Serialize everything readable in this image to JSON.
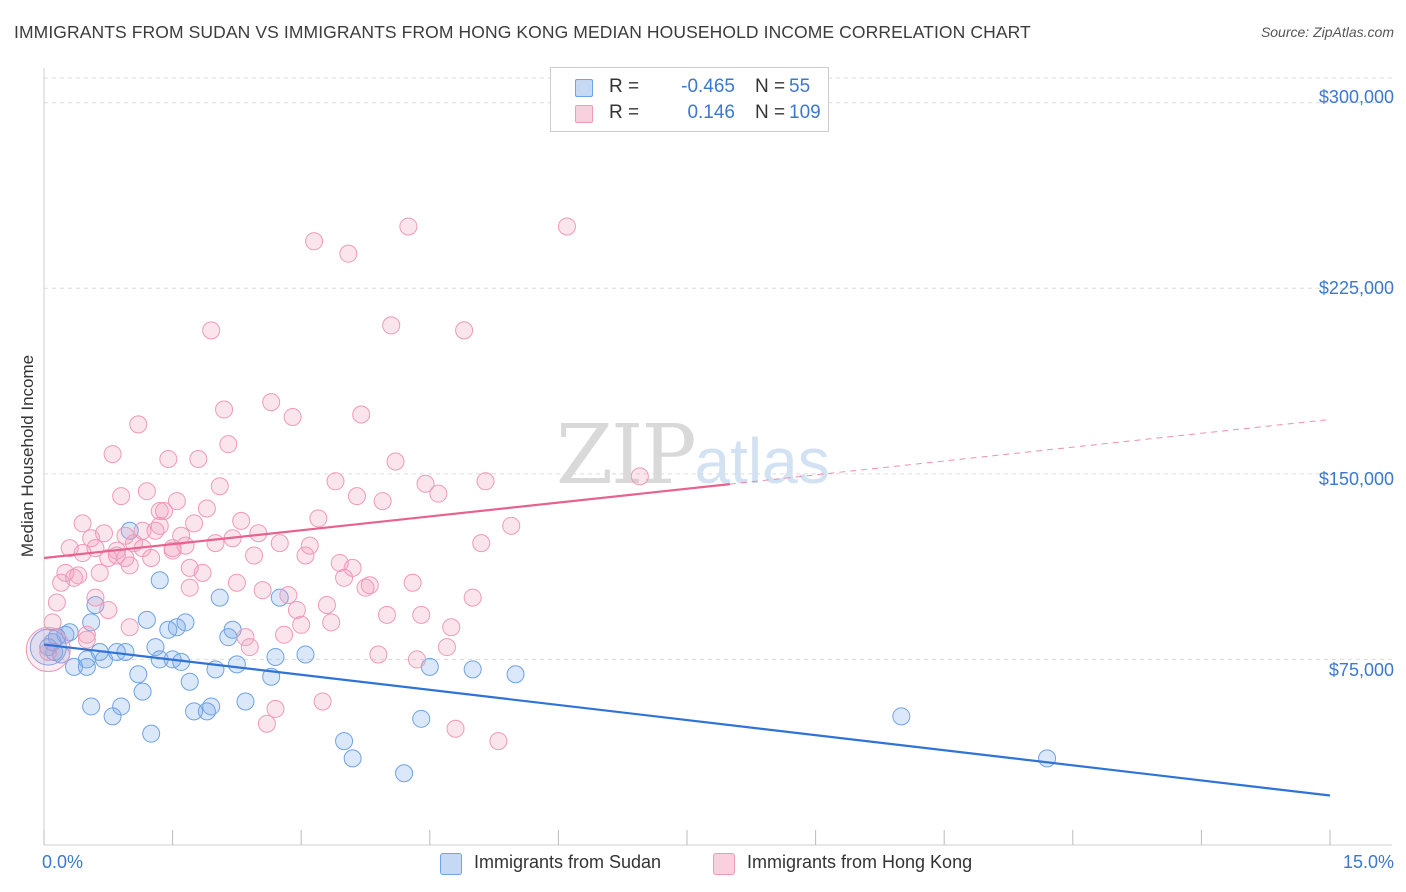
{
  "title": "IMMIGRANTS FROM SUDAN VS IMMIGRANTS FROM HONG KONG MEDIAN HOUSEHOLD INCOME CORRELATION CHART",
  "source": "Source: ZipAtlas.com",
  "watermark": {
    "zip": "ZIP",
    "atlas": "atlas"
  },
  "colors": {
    "blue": "#6fa2e6",
    "blue_line": "#2f73d6",
    "pink": "#f099b8",
    "pink_line": "#e8628e",
    "label_blue": "#3b78d0"
  },
  "legend": {
    "sudan": {
      "r_label": "R =",
      "r_value": "-0.465",
      "n_label": "N =",
      "n_value": "55"
    },
    "hongkong": {
      "r_label": "R =",
      "r_value": "0.146",
      "n_label": "N =",
      "n_value": "109"
    }
  },
  "bottom_legend": {
    "sudan": "Immigrants from Sudan",
    "hongkong": "Immigrants from Hong Kong"
  },
  "chart_data": {
    "type": "scatter",
    "title": "IMMIGRANTS FROM SUDAN VS IMMIGRANTS FROM HONG KONG MEDIAN HOUSEHOLD INCOME CORRELATION CHART",
    "xlabel": "",
    "ylabel": "Median Household Income",
    "xlim": [
      0,
      15
    ],
    "ylim": [
      0,
      310000
    ],
    "x_tick_labels": [
      "0.0%",
      "15.0%"
    ],
    "y_ticks": [
      {
        "value": 75000,
        "label": "$75,000"
      },
      {
        "value": 150000,
        "label": "$150,000"
      },
      {
        "value": 225000,
        "label": "$225,000"
      },
      {
        "value": 300000,
        "label": "$300,000"
      }
    ],
    "series": [
      {
        "name": "Immigrants from Sudan",
        "color": "#6fa2e6",
        "trend": {
          "x0": 0,
          "y0": 81000,
          "x1": 15,
          "y1": 20000,
          "solid_to": 15
        },
        "points": [
          [
            0.05,
            80000
          ],
          [
            0.1,
            82000
          ],
          [
            0.12,
            78000
          ],
          [
            0.15,
            84000
          ],
          [
            0.2,
            77000
          ],
          [
            0.25,
            85000
          ],
          [
            0.3,
            86000
          ],
          [
            0.35,
            72000
          ],
          [
            0.5,
            75000
          ],
          [
            0.5,
            72000
          ],
          [
            0.55,
            90000
          ],
          [
            0.55,
            56000
          ],
          [
            0.6,
            97000
          ],
          [
            0.65,
            78000
          ],
          [
            0.7,
            75000
          ],
          [
            0.8,
            52000
          ],
          [
            0.85,
            78000
          ],
          [
            0.9,
            56000
          ],
          [
            0.95,
            78000
          ],
          [
            1.0,
            127000
          ],
          [
            1.1,
            69000
          ],
          [
            1.15,
            62000
          ],
          [
            1.2,
            91000
          ],
          [
            1.25,
            45000
          ],
          [
            1.3,
            80000
          ],
          [
            1.35,
            75000
          ],
          [
            1.35,
            107000
          ],
          [
            1.45,
            87000
          ],
          [
            1.5,
            75000
          ],
          [
            1.55,
            88000
          ],
          [
            1.6,
            74000
          ],
          [
            1.65,
            90000
          ],
          [
            1.7,
            66000
          ],
          [
            1.75,
            54000
          ],
          [
            1.9,
            54000
          ],
          [
            1.95,
            56000
          ],
          [
            2.0,
            71000
          ],
          [
            2.05,
            100000
          ],
          [
            2.15,
            84000
          ],
          [
            2.2,
            87000
          ],
          [
            2.25,
            73000
          ],
          [
            2.35,
            58000
          ],
          [
            2.65,
            68000
          ],
          [
            2.7,
            76000
          ],
          [
            2.75,
            100000
          ],
          [
            3.05,
            77000
          ],
          [
            3.5,
            42000
          ],
          [
            3.6,
            35000
          ],
          [
            4.2,
            29000
          ],
          [
            4.4,
            51000
          ],
          [
            4.5,
            72000
          ],
          [
            5.0,
            71000
          ],
          [
            5.5,
            69000
          ],
          [
            10.0,
            52000
          ],
          [
            11.7,
            35000
          ]
        ]
      },
      {
        "name": "Immigrants from Hong Kong",
        "color": "#f099b8",
        "trend": {
          "x0": 0,
          "y0": 116000,
          "x1": 15,
          "y1": 172000,
          "solid_to": 8.0
        },
        "points": [
          [
            0.05,
            78000
          ],
          [
            0.1,
            90000
          ],
          [
            0.15,
            98000
          ],
          [
            0.2,
            106000
          ],
          [
            0.25,
            110000
          ],
          [
            0.3,
            120000
          ],
          [
            0.35,
            108000
          ],
          [
            0.4,
            109000
          ],
          [
            0.45,
            118000
          ],
          [
            0.5,
            85000
          ],
          [
            0.5,
            83000
          ],
          [
            0.55,
            124000
          ],
          [
            0.6,
            120000
          ],
          [
            0.65,
            110000
          ],
          [
            0.7,
            126000
          ],
          [
            0.75,
            116000
          ],
          [
            0.8,
            158000
          ],
          [
            0.85,
            117000
          ],
          [
            0.85,
            119000
          ],
          [
            0.9,
            141000
          ],
          [
            0.95,
            125000
          ],
          [
            0.95,
            116000
          ],
          [
            1.0,
            113000
          ],
          [
            1.0,
            88000
          ],
          [
            1.05,
            122000
          ],
          [
            1.1,
            170000
          ],
          [
            1.15,
            127000
          ],
          [
            1.2,
            143000
          ],
          [
            1.25,
            116000
          ],
          [
            1.3,
            127000
          ],
          [
            1.35,
            129000
          ],
          [
            1.35,
            135000
          ],
          [
            1.4,
            135000
          ],
          [
            1.45,
            156000
          ],
          [
            1.5,
            120000
          ],
          [
            1.5,
            119000
          ],
          [
            1.55,
            139000
          ],
          [
            1.6,
            125000
          ],
          [
            1.65,
            121000
          ],
          [
            1.7,
            112000
          ],
          [
            1.7,
            104000
          ],
          [
            1.75,
            130000
          ],
          [
            1.8,
            156000
          ],
          [
            1.85,
            110000
          ],
          [
            1.9,
            136000
          ],
          [
            1.95,
            208000
          ],
          [
            2.0,
            122000
          ],
          [
            2.05,
            145000
          ],
          [
            2.1,
            176000
          ],
          [
            2.15,
            162000
          ],
          [
            2.2,
            124000
          ],
          [
            2.25,
            106000
          ],
          [
            2.3,
            131000
          ],
          [
            2.35,
            84000
          ],
          [
            2.4,
            80000
          ],
          [
            2.45,
            117000
          ],
          [
            2.5,
            126000
          ],
          [
            2.55,
            103000
          ],
          [
            2.6,
            49000
          ],
          [
            2.65,
            179000
          ],
          [
            2.7,
            55000
          ],
          [
            2.75,
            122000
          ],
          [
            2.8,
            85000
          ],
          [
            2.85,
            101000
          ],
          [
            2.9,
            173000
          ],
          [
            2.95,
            95000
          ],
          [
            3.0,
            89000
          ],
          [
            3.05,
            117000
          ],
          [
            3.1,
            121000
          ],
          [
            3.15,
            244000
          ],
          [
            3.2,
            132000
          ],
          [
            3.25,
            58000
          ],
          [
            3.3,
            97000
          ],
          [
            3.35,
            90000
          ],
          [
            3.4,
            147000
          ],
          [
            3.45,
            114000
          ],
          [
            3.5,
            108000
          ],
          [
            3.55,
            239000
          ],
          [
            3.6,
            112000
          ],
          [
            3.65,
            141000
          ],
          [
            3.7,
            174000
          ],
          [
            3.75,
            104000
          ],
          [
            3.8,
            105000
          ],
          [
            3.9,
            77000
          ],
          [
            3.95,
            139000
          ],
          [
            4.0,
            93000
          ],
          [
            4.05,
            210000
          ],
          [
            4.1,
            155000
          ],
          [
            4.25,
            250000
          ],
          [
            4.3,
            106000
          ],
          [
            4.35,
            75000
          ],
          [
            4.4,
            93000
          ],
          [
            4.45,
            146000
          ],
          [
            4.6,
            142000
          ],
          [
            4.7,
            80000
          ],
          [
            4.75,
            88000
          ],
          [
            4.8,
            47000
          ],
          [
            4.9,
            208000
          ],
          [
            5.0,
            100000
          ],
          [
            5.1,
            122000
          ],
          [
            5.15,
            147000
          ],
          [
            5.3,
            42000
          ],
          [
            5.45,
            129000
          ],
          [
            6.1,
            250000
          ],
          [
            6.95,
            149000
          ],
          [
            0.45,
            130000
          ],
          [
            0.6,
            100000
          ],
          [
            0.75,
            95000
          ],
          [
            1.15,
            120000
          ]
        ]
      }
    ]
  }
}
